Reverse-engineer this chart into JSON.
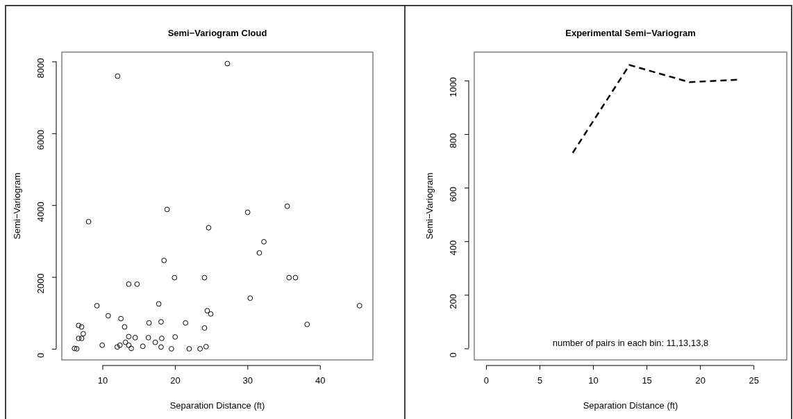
{
  "chart_data": [
    {
      "type": "scatter",
      "title": "Semi−Variogram Cloud",
      "xlabel": "Separation Distance (ft)",
      "ylabel": "Semi−Variogram",
      "marker": "circle",
      "xlim": [
        4.4,
        47.3
      ],
      "xticks": [
        10,
        20,
        30,
        40
      ],
      "ylim": [
        -310,
        8260
      ],
      "yticks": [
        0,
        2000,
        4000,
        6000,
        8000
      ],
      "series": [
        {
          "color": "#000000",
          "x": [
            6.15,
            6.46,
            6.72,
            7.13,
            6.72,
            7.13,
            7.36,
            8.09,
            9.24,
            9.97,
            10.8,
            12.1,
            12.04,
            12.42,
            12.55,
            13.06,
            13.18,
            13.63,
            13.63,
            13.63,
            13.98,
            14.52,
            14.78,
            15.57,
            16.34,
            16.43,
            17.29,
            17.77,
            18.09,
            18.18,
            18.09,
            18.5,
            18.92,
            19.52,
            19.94,
            20.03,
            21.46,
            21.97,
            23.47,
            24.08,
            24.08,
            24.3,
            24.46,
            24.65,
            24.94,
            27.23,
            30.03,
            35.49,
            32.27,
            31.64,
            35.74,
            36.62,
            30.38,
            45.46,
            38.23
          ],
          "values": [
            10,
            0,
            650,
            610,
            290,
            290,
            420,
            3540,
            1200,
            100,
            920,
            7590,
            50,
            100,
            840,
            610,
            180,
            1800,
            340,
            100,
            10,
            310,
            1800,
            70,
            310,
            720,
            180,
            1250,
            750,
            290,
            50,
            2460,
            3880,
            0,
            1980,
            330,
            720,
            0,
            0,
            1980,
            580,
            60,
            1060,
            3370,
            970,
            7940,
            3800,
            3970,
            2980,
            2670,
            1980,
            1980,
            1410,
            1200,
            680
          ]
        }
      ]
    },
    {
      "type": "line",
      "title": "Experimental Semi−Variogram",
      "xlabel": "Separation Distance (ft)",
      "ylabel": "Semi−Variogram",
      "line_style": "dashed",
      "xlim": [
        -1.1,
        28.1
      ],
      "xticks": [
        0,
        5,
        10,
        15,
        20,
        25
      ],
      "ylim": [
        -43,
        1106
      ],
      "yticks": [
        0,
        200,
        400,
        600,
        800,
        1000
      ],
      "annotations": [
        "number of pairs in each bin: 11,13,13,8"
      ],
      "series": [
        {
          "color": "#000000",
          "x": [
            8.1,
            13.4,
            19.0,
            23.6
          ],
          "values": [
            730,
            1058,
            994,
            1003
          ]
        }
      ]
    }
  ]
}
